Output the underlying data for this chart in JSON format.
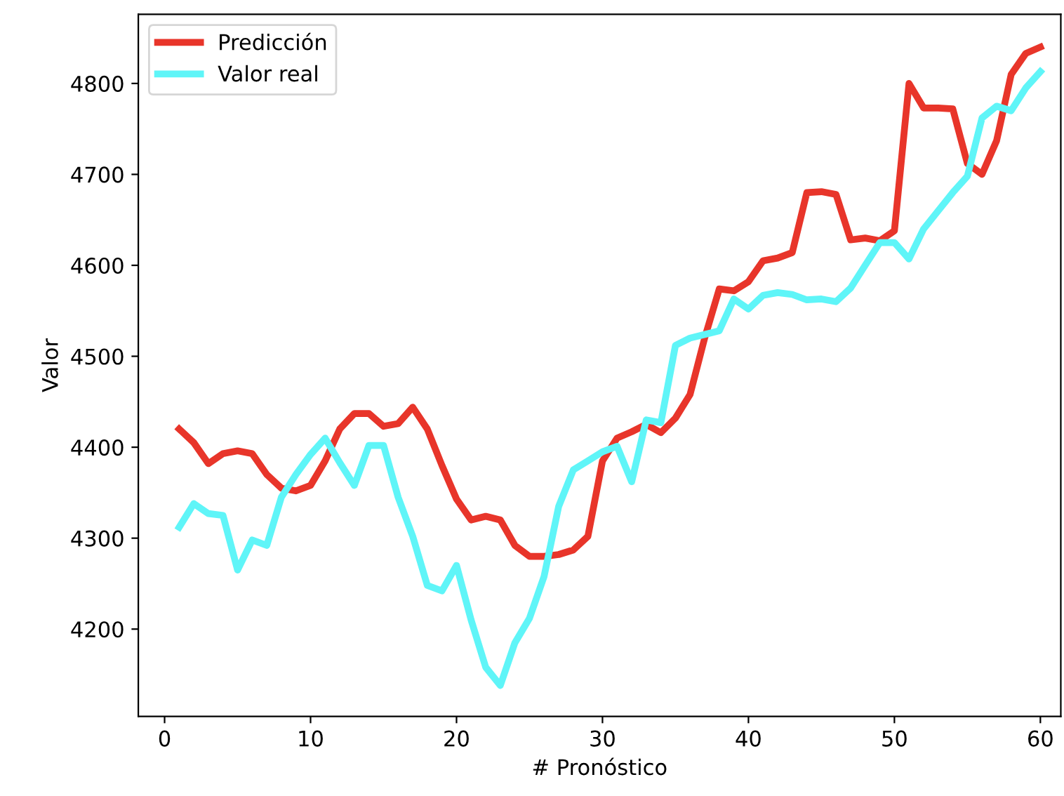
{
  "chart_data": {
    "type": "line",
    "xlabel": "# Pronóstico",
    "ylabel": "Valor",
    "x": [
      1,
      2,
      3,
      4,
      5,
      6,
      7,
      8,
      9,
      10,
      11,
      12,
      13,
      14,
      15,
      16,
      17,
      18,
      19,
      20,
      21,
      22,
      23,
      24,
      25,
      26,
      27,
      28,
      29,
      30,
      31,
      32,
      33,
      34,
      35,
      36,
      37,
      38,
      39,
      40,
      41,
      42,
      43,
      44,
      45,
      46,
      47,
      48,
      49,
      50,
      51,
      52,
      53,
      54,
      55,
      56,
      57,
      58,
      59,
      60
    ],
    "series": [
      {
        "name": "Predicción",
        "color": "#e8352a",
        "values": [
          4420,
          4405,
          4382,
          4393,
          4396,
          4393,
          4370,
          4355,
          4352,
          4358,
          4385,
          4420,
          4437,
          4437,
          4423,
          4426,
          4444,
          4420,
          4380,
          4343,
          4320,
          4324,
          4320,
          4292,
          4280,
          4280,
          4282,
          4287,
          4302,
          4385,
          4410,
          4417,
          4425,
          4416,
          4432,
          4458,
          4520,
          4574,
          4572,
          4582,
          4605,
          4608,
          4614,
          4680,
          4681,
          4678,
          4628,
          4630,
          4627,
          4638,
          4800,
          4773,
          4773,
          4772,
          4712,
          4700,
          4737,
          4810,
          4833,
          4840
        ]
      },
      {
        "name": "Valor real",
        "color": "#5ff5f8",
        "values": [
          4312,
          4338,
          4327,
          4325,
          4265,
          4298,
          4292,
          4345,
          4370,
          4392,
          4410,
          4383,
          4358,
          4402,
          4402,
          4345,
          4302,
          4248,
          4242,
          4270,
          4210,
          4158,
          4138,
          4185,
          4212,
          4258,
          4335,
          4375,
          4385,
          4395,
          4401,
          4362,
          4430,
          4427,
          4512,
          4520,
          4524,
          4528,
          4563,
          4552,
          4567,
          4570,
          4568,
          4562,
          4563,
          4560,
          4575,
          4600,
          4625,
          4625,
          4607,
          4640,
          4660,
          4680,
          4698,
          4762,
          4775,
          4770,
          4795,
          4813
        ]
      }
    ],
    "xlim": [
      -1.8,
      61.4
    ],
    "xticks": [
      0,
      10,
      20,
      30,
      40,
      50,
      60
    ],
    "ylim": [
      4104,
      4876
    ],
    "yticks": [
      4200,
      4300,
      4400,
      4500,
      4600,
      4700,
      4800
    ],
    "legend": "top left",
    "grid": false,
    "line_style": "solid",
    "marker": "none"
  }
}
